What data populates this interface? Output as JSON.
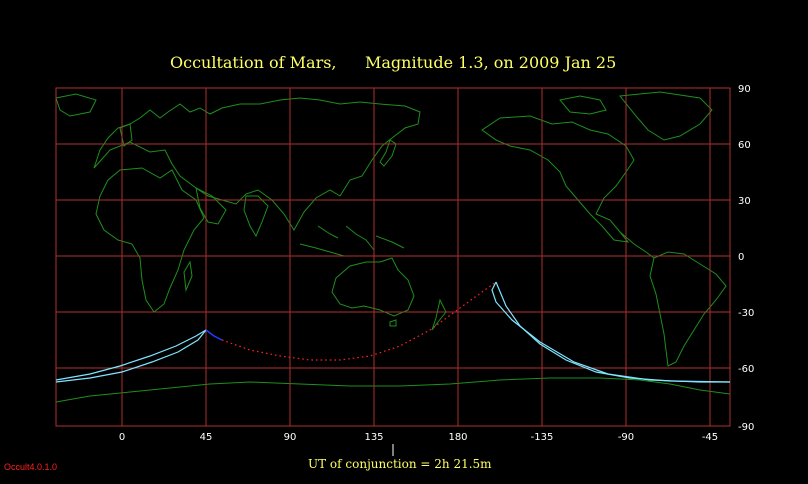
{
  "title": {
    "part1": "Occultation  of  Mars,",
    "part2": "Magnitude 1.3,    on  2009 Jan 25"
  },
  "map": {
    "center_longitude": 135,
    "lon_labels": [
      "0",
      "45",
      "90",
      "135",
      "180",
      "-135",
      "-90",
      "-45"
    ],
    "lat_labels": [
      "90",
      "60",
      "30",
      "0",
      "-30",
      "-60",
      "-90"
    ],
    "colors": {
      "background": "#000000",
      "grid": "#b03030",
      "coastline": "#1e8f1e",
      "limit_line": "#7fe6ff",
      "daylight_dots": "#ff2020",
      "dark_segment": "#1f3fff",
      "title": "#ffff66",
      "axis_text": "#ffffff"
    }
  },
  "footer": {
    "conjunction_text": "UT of conjunction =  2h 21.5m",
    "version": "Occult4.0.1.0"
  }
}
